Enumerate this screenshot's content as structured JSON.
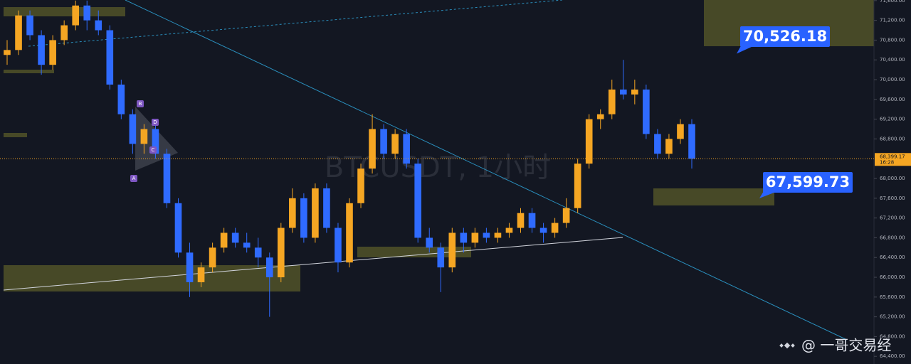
{
  "chart_data": {
    "type": "candlestick",
    "watermark": "BTCUSDT, 1小时",
    "up_color": "#f5a623",
    "down_color": "#2f6bff",
    "candles": {
      "open": [
        70500,
        70600,
        71300,
        70900,
        70300,
        70800,
        71100,
        71500,
        71200,
        71000,
        69900,
        69300,
        68700,
        69000,
        68500,
        67500,
        66500,
        65900,
        66200,
        66600,
        66900,
        66700,
        66600,
        66400,
        66000,
        67000,
        67600,
        66800,
        67800,
        67000,
        66300,
        67500,
        68200,
        69000,
        68500,
        68900,
        68300,
        66800,
        66600,
        66200,
        66900,
        66700,
        66900,
        66800,
        66900,
        67000,
        67300,
        67000,
        66900,
        67100,
        67400,
        68300,
        69200,
        69300,
        69800,
        69700,
        69800,
        68900,
        68500,
        68800,
        69100
      ],
      "high": [
        70800,
        71400,
        71400,
        71000,
        70900,
        71200,
        71600,
        71600,
        71400,
        71100,
        70000,
        69400,
        69100,
        69100,
        68600,
        67600,
        66700,
        66300,
        66700,
        67000,
        67000,
        66900,
        66800,
        66500,
        67100,
        67800,
        67700,
        67900,
        67900,
        67100,
        67600,
        68300,
        69300,
        69100,
        69000,
        69000,
        68400,
        67000,
        66700,
        67000,
        67000,
        67000,
        67000,
        67000,
        67100,
        67400,
        67400,
        67100,
        67200,
        67600,
        68400,
        69300,
        69400,
        70000,
        70400,
        70000,
        69900,
        69000,
        68900,
        69200,
        69200
      ],
      "low": [
        70300,
        70500,
        70800,
        70100,
        70200,
        70700,
        71000,
        71000,
        70900,
        69800,
        69200,
        68500,
        68500,
        68400,
        67400,
        66400,
        65600,
        65800,
        66100,
        66500,
        66600,
        66500,
        66200,
        65200,
        65900,
        66900,
        66700,
        66700,
        66900,
        66100,
        66200,
        67400,
        68100,
        68400,
        68400,
        68200,
        66700,
        66500,
        65700,
        66100,
        66500,
        66600,
        66700,
        66700,
        66800,
        66900,
        66900,
        66700,
        66800,
        67000,
        67300,
        68200,
        69000,
        69200,
        69600,
        69500,
        68800,
        68400,
        68400,
        68700,
        68200
      ],
      "close": [
        70600,
        71300,
        70900,
        70300,
        70800,
        71100,
        71500,
        71200,
        71000,
        69900,
        69300,
        68700,
        69000,
        68500,
        67500,
        66500,
        65900,
        66200,
        66600,
        66900,
        66700,
        66600,
        66400,
        66000,
        67000,
        67600,
        66800,
        67800,
        67000,
        66300,
        67500,
        68200,
        69000,
        68500,
        68900,
        68300,
        66800,
        66600,
        66200,
        66900,
        66700,
        66900,
        66800,
        66900,
        67000,
        67300,
        67000,
        66900,
        67100,
        67400,
        68300,
        69200,
        69300,
        69800,
        69700,
        69800,
        68900,
        68500,
        68800,
        69100,
        68400
      ]
    },
    "ylim": [
      64245,
      71612
    ],
    "yticks": [
      {
        "value": 64400,
        "label": "64,400.00"
      },
      {
        "value": 64800,
        "label": "64,800.00"
      },
      {
        "value": 65200,
        "label": "65,200.00"
      },
      {
        "value": 65600,
        "label": "65,600.00"
      },
      {
        "value": 66000,
        "label": "66,000.00"
      },
      {
        "value": 66400,
        "label": "66,400.00"
      },
      {
        "value": 66800,
        "label": "66,800.00"
      },
      {
        "value": 67200,
        "label": "67,200.00"
      },
      {
        "value": 67600,
        "label": "67,600.00"
      },
      {
        "value": 68000,
        "label": "68,000.00"
      },
      {
        "value": 68800,
        "label": "68,800.00"
      },
      {
        "value": 69200,
        "label": "69,200.00"
      },
      {
        "value": 69600,
        "label": "69,600.00"
      },
      {
        "value": 70000,
        "label": "70,000.00"
      },
      {
        "value": 70400,
        "label": "70,400.00"
      },
      {
        "value": 70800,
        "label": "70,800.00"
      },
      {
        "value": 71200,
        "label": "71,200.00"
      },
      {
        "value": 71600,
        "label": "71,600.00"
      }
    ],
    "current_price": {
      "value": 68399.17,
      "label": "68,399.17",
      "countdown": "16:28"
    },
    "targets": [
      {
        "value": 70526.18,
        "label": "70,526.18"
      },
      {
        "value": 67599.73,
        "label": "67,599.73"
      }
    ],
    "pattern_labels": [
      "A",
      "B",
      "C",
      "D"
    ]
  },
  "footer": "@ 一哥交易经"
}
